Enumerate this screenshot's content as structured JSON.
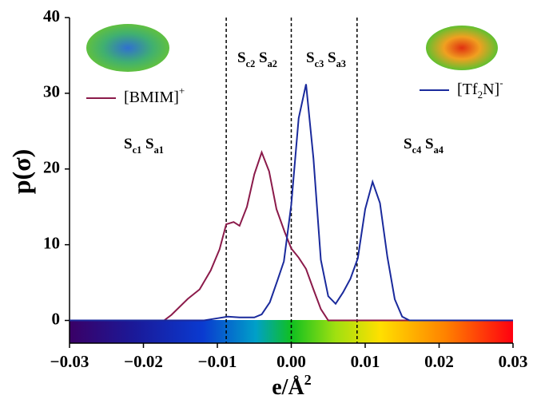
{
  "chart_data": {
    "type": "line",
    "xlabel": "e/Å2",
    "ylabel": "p(σ)",
    "xlim": [
      -0.03,
      0.03
    ],
    "ylim": [
      -3,
      40
    ],
    "xticks": [
      {
        "value": -0.03,
        "label": "−0.03"
      },
      {
        "value": -0.02,
        "label": "−0.02"
      },
      {
        "value": -0.01,
        "label": "−0.01"
      },
      {
        "value": 0,
        "label": "0.00"
      },
      0.01,
      0.02,
      0.03
    ],
    "yticks": [
      0,
      10,
      20,
      30,
      40
    ],
    "vlines": [
      -0.0088,
      0,
      0.0089
    ],
    "annotations": [
      "Sc1 Sa1",
      "Sc2 Sa2",
      "Sc3 Sa3",
      "Sc4 Sa4"
    ],
    "series": [
      {
        "name": "[BMIM]+",
        "color": "#8b1a4a",
        "x": [
          -0.03,
          -0.0172,
          -0.0162,
          -0.014,
          -0.0124,
          -0.0109,
          -0.0097,
          -0.0088,
          -0.0078,
          -0.007,
          -0.006,
          -0.005,
          -0.004,
          -0.003,
          -0.002,
          -0.0009,
          0,
          0.001,
          0.002,
          0.003,
          0.004,
          0.005,
          0.03
        ],
        "values": [
          0,
          0,
          0.74,
          2.85,
          4.1,
          6.6,
          9.4,
          12.7,
          13.0,
          12.5,
          15.0,
          19.3,
          22.2,
          19.7,
          14.7,
          11.7,
          9.5,
          8.3,
          6.8,
          4.1,
          1.5,
          0,
          0
        ]
      },
      {
        "name": "[Tf2N]-",
        "color": "#1a2a9c",
        "x": [
          -0.03,
          -0.0118,
          -0.0099,
          -0.0086,
          -0.007,
          -0.005,
          -0.004,
          -0.0029,
          -0.0019,
          -0.001,
          0,
          0.001,
          0.002,
          0.003,
          0.004,
          0.005,
          0.006,
          0.007,
          0.008,
          0.009,
          0.01,
          0.011,
          0.012,
          0.013,
          0.014,
          0.015,
          0.016,
          0.03
        ],
        "values": [
          0,
          0,
          0.3,
          0.5,
          0.4,
          0.4,
          0.8,
          2.4,
          5.2,
          7.8,
          15.3,
          26.7,
          31.2,
          21.4,
          8.0,
          3.2,
          2.2,
          3.7,
          5.5,
          8.2,
          14.7,
          18.3,
          15.5,
          8.4,
          2.8,
          0.5,
          0,
          0
        ]
      }
    ]
  }
}
